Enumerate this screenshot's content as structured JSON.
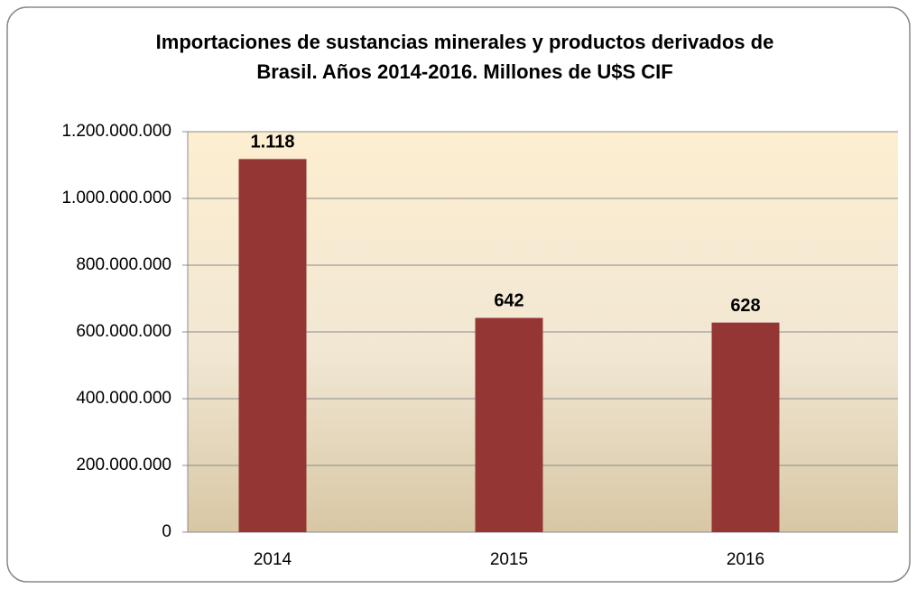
{
  "chart_data": {
    "type": "bar",
    "title": [
      "Importaciones de sustancias minerales y productos derivados de",
      "Brasil. Años 2014-2016. Millones de U$S CIF"
    ],
    "categories": [
      "2014",
      "2015",
      "2016"
    ],
    "values": [
      1118000000,
      642000000,
      628000000
    ],
    "value_labels": [
      "1.118",
      "642",
      "628"
    ],
    "color": "#943634",
    "ylim": [
      0,
      1200000000
    ],
    "yticks": [
      0,
      {
        "value": 200000000,
        "label": "200.000.000"
      },
      {
        "value": 400000000,
        "label": "400.000.000"
      },
      {
        "value": 600000000,
        "label": "600.000.000"
      },
      {
        "value": 800000000,
        "label": "800.000.000"
      },
      {
        "value": 1000000000,
        "label": "1.000.000.000"
      },
      {
        "value": 1200000000,
        "label": "1.200.000.000"
      }
    ],
    "grid": true
  }
}
